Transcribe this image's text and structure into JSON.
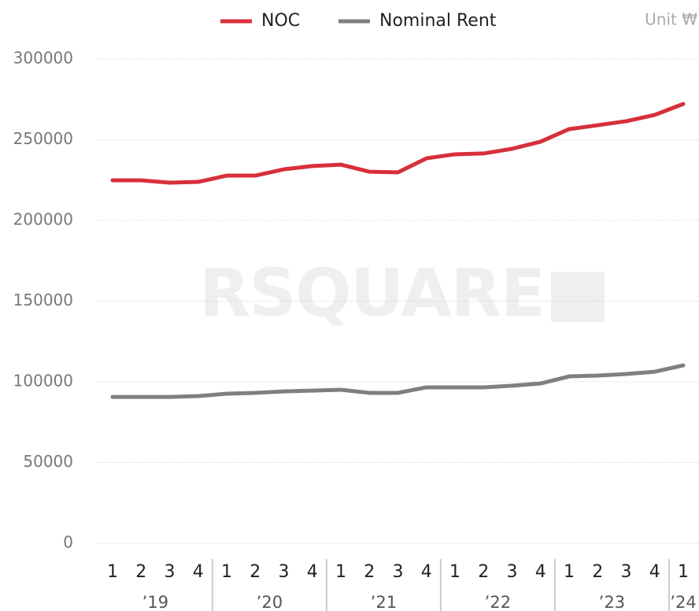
{
  "chart_data": {
    "type": "line",
    "unit": "Unit ₩",
    "watermark": "RSQUARE",
    "years": [
      {
        "label": "’19",
        "quarters": [
          "1",
          "2",
          "3",
          "4"
        ]
      },
      {
        "label": "’20",
        "quarters": [
          "1",
          "2",
          "3",
          "4"
        ]
      },
      {
        "label": "’21",
        "quarters": [
          "1",
          "2",
          "3",
          "4"
        ]
      },
      {
        "label": "’22",
        "quarters": [
          "1",
          "2",
          "3",
          "4"
        ]
      },
      {
        "label": "’23",
        "quarters": [
          "1",
          "2",
          "3",
          "4"
        ]
      },
      {
        "label": "’24",
        "quarters": [
          "1"
        ]
      }
    ],
    "series": [
      {
        "name": "NOC",
        "color": "#d7303a",
        "values": [
          224900,
          224900,
          223400,
          223900,
          227800,
          227800,
          231700,
          233700,
          234600,
          230200,
          229800,
          238500,
          241000,
          241500,
          244400,
          248800,
          256600,
          259000,
          261500,
          265400,
          272200
        ]
      },
      {
        "name": "Nominal Rent",
        "color": "#7f7f7f",
        "values": [
          90700,
          90700,
          90700,
          91200,
          92700,
          93200,
          94100,
          94600,
          95100,
          93200,
          93200,
          96600,
          96600,
          96600,
          97600,
          99000,
          103400,
          103900,
          104900,
          106300,
          110200
        ]
      }
    ],
    "ylim": [
      0,
      300000
    ],
    "yticks": [
      0,
      50000,
      100000,
      150000,
      200000,
      250000,
      300000
    ],
    "grid": true,
    "legend": "top"
  }
}
